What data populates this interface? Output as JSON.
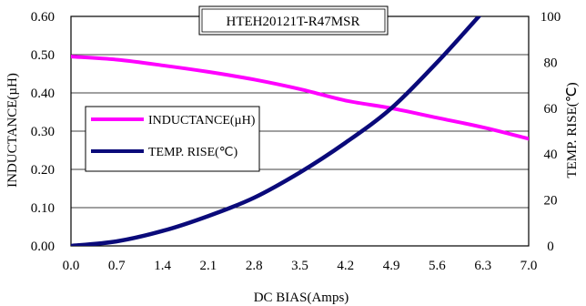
{
  "chart_data": {
    "type": "line",
    "title": "HTEH20121T-R47MSR",
    "xlabel": "DC BIAS(Amps)",
    "ylabel_left": "INDUCTANCE(µH)",
    "ylabel_right": "TEMP. RISE(℃)",
    "xlim": [
      0,
      7.0
    ],
    "ylim_left": [
      0,
      0.6
    ],
    "ylim_right": [
      0,
      100
    ],
    "x_ticks": [
      "0.0",
      "0.7",
      "1.4",
      "2.1",
      "2.8",
      "3.5",
      "4.2",
      "4.9",
      "5.6",
      "6.3",
      "7.0"
    ],
    "y_left_ticks": [
      "0.00",
      "0.10",
      "0.20",
      "0.30",
      "0.40",
      "0.50",
      "0.60"
    ],
    "y_right_ticks": [
      "0",
      "20",
      "40",
      "60",
      "80",
      "100"
    ],
    "grid": "horizontal",
    "legend_position": "left-center",
    "series": [
      {
        "name": "INDUCTANCE(µH)",
        "axis": "left",
        "color": "#ff00ff",
        "x": [
          0,
          0.7,
          1.4,
          2.1,
          2.8,
          3.5,
          4.2,
          4.9,
          5.6,
          6.3,
          7.0
        ],
        "values": [
          0.495,
          0.487,
          0.472,
          0.455,
          0.435,
          0.41,
          0.38,
          0.36,
          0.335,
          0.31,
          0.28
        ]
      },
      {
        "name": "TEMP. RISE(℃)",
        "axis": "right",
        "color": "#0a0a7a",
        "x": [
          0,
          0.7,
          1.4,
          2.1,
          2.8,
          3.5,
          4.2,
          4.9,
          5.6,
          6.3
        ],
        "values": [
          0,
          2,
          6.5,
          13,
          21,
          32,
          45,
          60,
          80,
          102
        ]
      }
    ]
  }
}
